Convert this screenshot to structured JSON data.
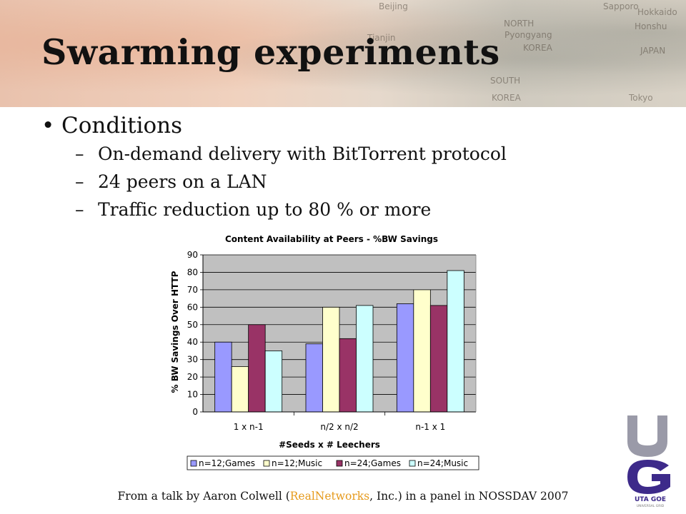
{
  "slide": {
    "title": "Swarming experiments",
    "banner_labels": [
      "Beijing",
      "NORTH",
      "Pyongyang",
      "KOREA",
      "SOUTH",
      "KOREA",
      "Sapporo",
      "Hokkaido",
      "Honshu",
      "JAPAN",
      "Tokyo",
      "Tianjin"
    ],
    "bullet": "Conditions",
    "bullet_glyph": "•",
    "dash_glyph": "–",
    "subbullets": [
      "On-demand delivery with BitTorrent protocol",
      "24 peers on a LAN",
      "Traffic reduction up to 80 % or more"
    ],
    "credit_before": "From a talk by Aaron Colwell (",
    "credit_highlight": "RealNetworks",
    "credit_after": ", Inc.) in a panel in NOSSDAV 2007",
    "colors": {
      "highlight": "#e69a1c",
      "logo_blue": "#3d2a8a",
      "logo_gray": "#9a9aa8"
    }
  },
  "logo": {
    "letters": "UG",
    "text": "UTA GOE",
    "subtext": "UNIVERSAL GRID"
  },
  "chart_data": {
    "type": "bar",
    "title": "Content Availability at Peers - %BW Savings",
    "xlabel": "#Seeds x # Leechers",
    "ylabel": "% BW Savings Over HTTP",
    "categories": [
      "1 x n-1",
      "n/2 x n/2",
      "n-1 x 1"
    ],
    "series": [
      {
        "name": "n=12;Games",
        "values": [
          40,
          39,
          62
        ],
        "color": "#9999ff"
      },
      {
        "name": "n=12;Music",
        "values": [
          26,
          60,
          70
        ],
        "color": "#ffffcc"
      },
      {
        "name": "n=24;Games",
        "values": [
          50,
          42,
          61
        ],
        "color": "#993366"
      },
      {
        "name": "n=24;Music",
        "values": [
          35,
          61,
          81
        ],
        "color": "#ccffff"
      }
    ],
    "ylim": [
      0,
      90
    ],
    "yticks": [
      0,
      10,
      20,
      30,
      40,
      50,
      60,
      70,
      80,
      90
    ],
    "grid": true,
    "plot_background": "#c0c0c0",
    "legend": "bottom"
  }
}
